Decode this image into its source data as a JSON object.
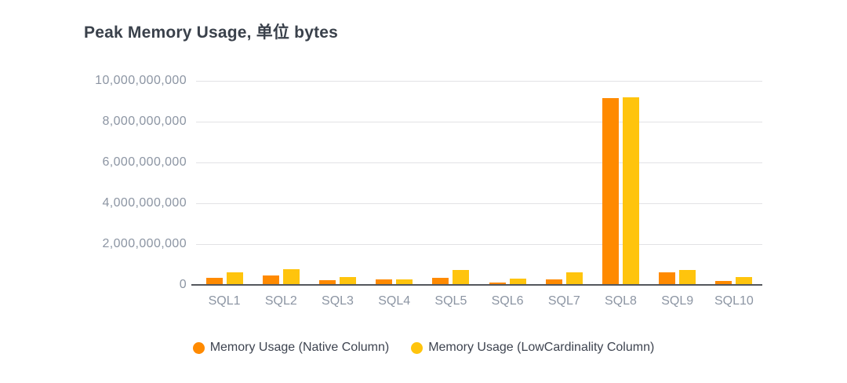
{
  "title": "Peak Memory Usage, 单位 bytes",
  "chart_data": {
    "type": "bar",
    "title": "Peak Memory Usage, 单位 bytes",
    "xlabel": "",
    "ylabel": "",
    "categories": [
      "SQL1",
      "SQL2",
      "SQL3",
      "SQL4",
      "SQL5",
      "SQL6",
      "SQL7",
      "SQL8",
      "SQL9",
      "SQL10"
    ],
    "series": [
      {
        "key": "native",
        "name": "Memory Usage (Native Column)",
        "color": "#FF8A00",
        "values": [
          320000000,
          420000000,
          190000000,
          220000000,
          320000000,
          90000000,
          220000000,
          9100000000,
          580000000,
          170000000
        ]
      },
      {
        "key": "lowcardinality",
        "name": "Memory Usage (LowCardinality Column)",
        "color": "#FFC40D",
        "values": [
          580000000,
          750000000,
          360000000,
          240000000,
          700000000,
          260000000,
          580000000,
          9150000000,
          700000000,
          360000000
        ]
      }
    ],
    "ylim": [
      0,
      10000000000
    ],
    "yticks": [
      0,
      2000000000,
      4000000000,
      6000000000,
      8000000000,
      10000000000
    ],
    "grid": true,
    "legend_position": "bottom"
  },
  "colors": {
    "background": "#FFFFFF",
    "title_text": "#3A414B",
    "axis_label_text": "#8C95A3",
    "legend_text": "#3E4450",
    "gridline": "#E2E2E5",
    "axis_line": "#54575D",
    "series_native": "#FF8A00",
    "series_lowcardinality": "#FFC40D"
  }
}
